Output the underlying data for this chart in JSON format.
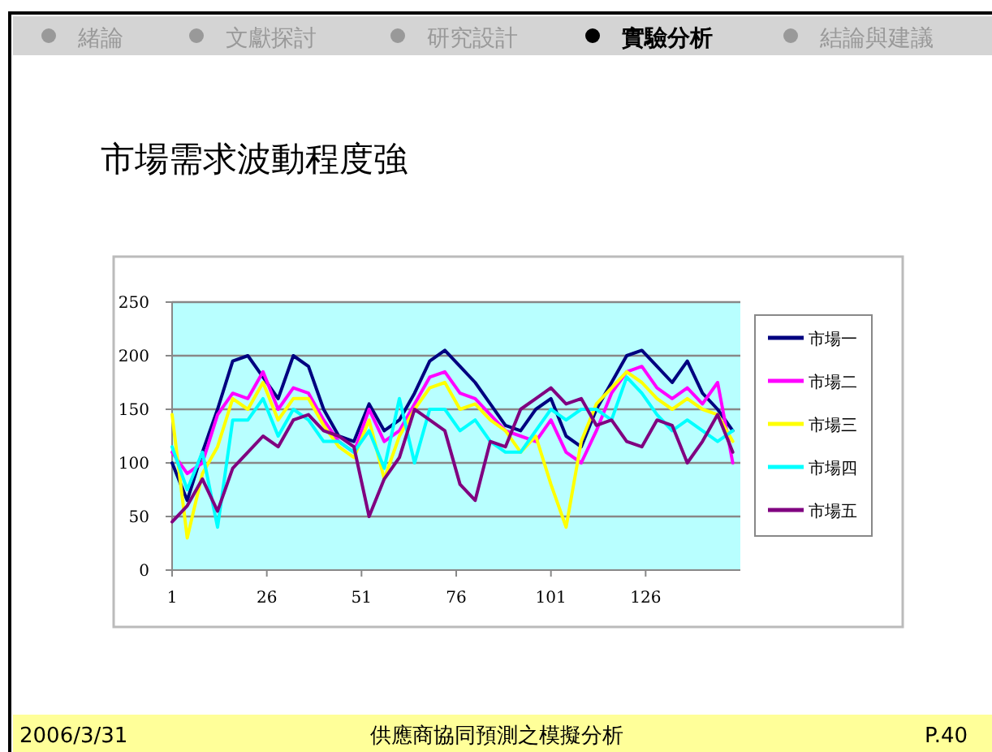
{
  "chart_data": {
    "type": "line",
    "title": "市場需求波動程度強",
    "annotations": [
      "緒論",
      "文獻探討",
      "研究設計",
      "實驗分析",
      "結論與建議",
      "2006/3/31",
      "供應商協同預測之模擬分析",
      "P.40"
    ],
    "x": [
      1,
      5,
      9,
      13,
      17,
      21,
      25,
      29,
      33,
      37,
      41,
      45,
      49,
      53,
      57,
      61,
      65,
      69,
      73,
      77,
      81,
      85,
      89,
      93,
      97,
      101,
      105,
      109,
      113,
      117,
      121,
      125,
      129,
      133,
      137,
      141,
      145,
      149
    ],
    "xlim": [
      1,
      151
    ],
    "xticks": [
      1,
      26,
      51,
      76,
      101,
      126
    ],
    "ylim": [
      0,
      250
    ],
    "yticks": [
      0,
      50,
      100,
      150,
      200,
      250
    ],
    "grid": "y",
    "legend": "right",
    "marker": "none",
    "line_style": "solid",
    "series": [
      {
        "name": "市場一",
        "color": "#000080",
        "values": [
          100,
          65,
          110,
          150,
          195,
          200,
          180,
          160,
          200,
          190,
          150,
          125,
          120,
          155,
          130,
          140,
          165,
          195,
          205,
          190,
          175,
          155,
          135,
          130,
          150,
          160,
          125,
          115,
          150,
          175,
          200,
          205,
          190,
          175,
          195,
          165,
          150,
          130
        ]
      },
      {
        "name": "市場二",
        "color": "#ff00ff",
        "values": [
          110,
          90,
          100,
          145,
          165,
          160,
          185,
          150,
          170,
          165,
          140,
          120,
          110,
          150,
          120,
          130,
          155,
          180,
          185,
          165,
          160,
          145,
          130,
          125,
          120,
          140,
          110,
          100,
          130,
          165,
          185,
          190,
          170,
          160,
          170,
          155,
          175,
          100
        ]
      },
      {
        "name": "市場三",
        "color": "#ffff00",
        "values": [
          145,
          30,
          90,
          115,
          160,
          150,
          175,
          140,
          160,
          160,
          135,
          115,
          105,
          140,
          85,
          125,
          150,
          170,
          175,
          150,
          155,
          140,
          130,
          110,
          125,
          80,
          40,
          120,
          155,
          170,
          185,
          175,
          160,
          150,
          160,
          150,
          145,
          120
        ]
      },
      {
        "name": "市場四",
        "color": "#00ffff",
        "values": [
          115,
          75,
          110,
          40,
          140,
          140,
          160,
          125,
          150,
          140,
          120,
          120,
          110,
          130,
          95,
          160,
          100,
          150,
          150,
          130,
          140,
          120,
          110,
          110,
          130,
          150,
          140,
          150,
          150,
          140,
          180,
          165,
          145,
          130,
          140,
          130,
          120,
          130
        ]
      },
      {
        "name": "市場五",
        "color": "#800080",
        "values": [
          45,
          60,
          85,
          55,
          95,
          110,
          125,
          115,
          140,
          145,
          130,
          125,
          115,
          50,
          85,
          105,
          150,
          140,
          130,
          80,
          65,
          120,
          115,
          150,
          160,
          170,
          155,
          160,
          135,
          140,
          120,
          115,
          140,
          135,
          100,
          120,
          145,
          110
        ]
      }
    ]
  }
}
